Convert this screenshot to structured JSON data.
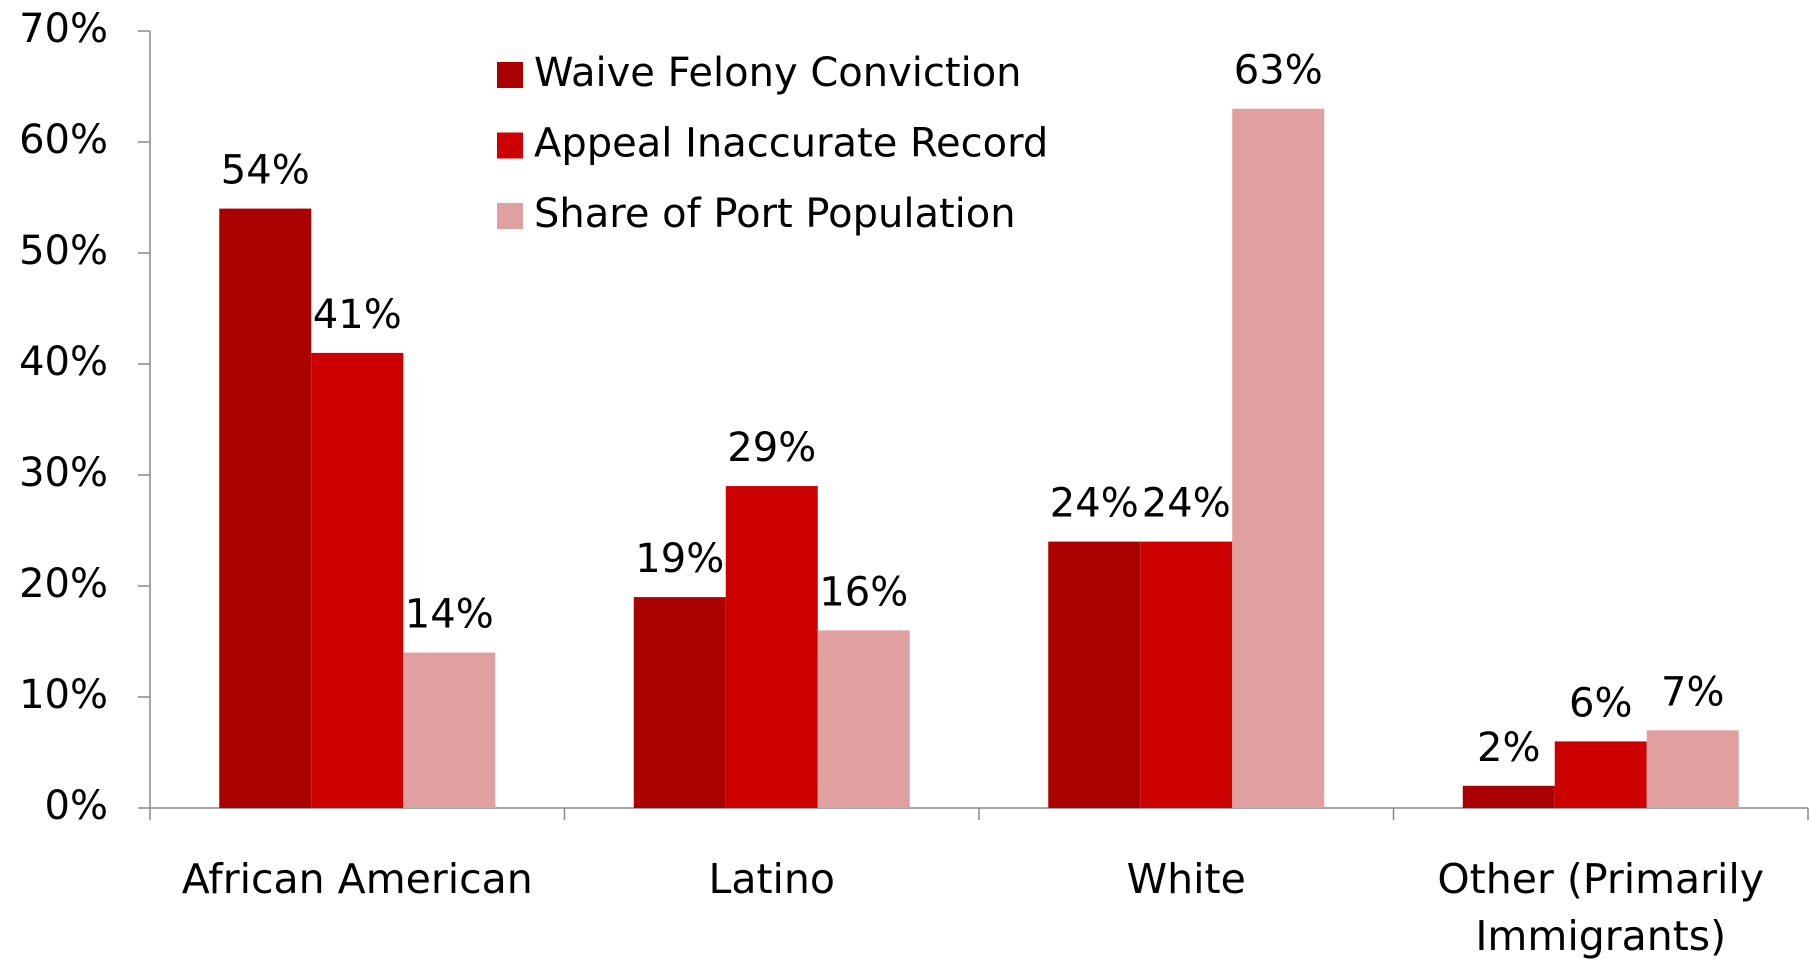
{
  "chart_data": {
    "type": "bar",
    "categories": [
      "African American",
      "Latino",
      "White",
      "Other (Primarily Immigrants)"
    ],
    "series": [
      {
        "name": "Waive Felony Conviction",
        "color": "#aa0000",
        "values": [
          54,
          19,
          24,
          2
        ],
        "value_labels": [
          "54%",
          "19%",
          "24%",
          "2%"
        ]
      },
      {
        "name": "Appeal Inaccurate Record",
        "color": "#cc0000",
        "values": [
          41,
          29,
          24,
          6
        ],
        "value_labels": [
          "41%",
          "29%",
          "24%",
          "6%"
        ]
      },
      {
        "name": "Share of Port Population",
        "color": "#e0a0a0",
        "values": [
          14,
          16,
          63,
          7
        ],
        "value_labels": [
          "14%",
          "16%",
          "63%",
          "7%"
        ]
      }
    ],
    "ylim": [
      0,
      70
    ],
    "yticks": [
      {
        "value": 0,
        "label": "0%"
      },
      {
        "value": 10,
        "label": "10%"
      },
      {
        "value": 20,
        "label": "20%"
      },
      {
        "value": 30,
        "label": "30%"
      },
      {
        "value": 40,
        "label": "40%"
      },
      {
        "value": 50,
        "label": "50%"
      },
      {
        "value": 60,
        "label": "60%"
      },
      {
        "value": 70,
        "label": "70%"
      }
    ],
    "legend": "top-center"
  }
}
